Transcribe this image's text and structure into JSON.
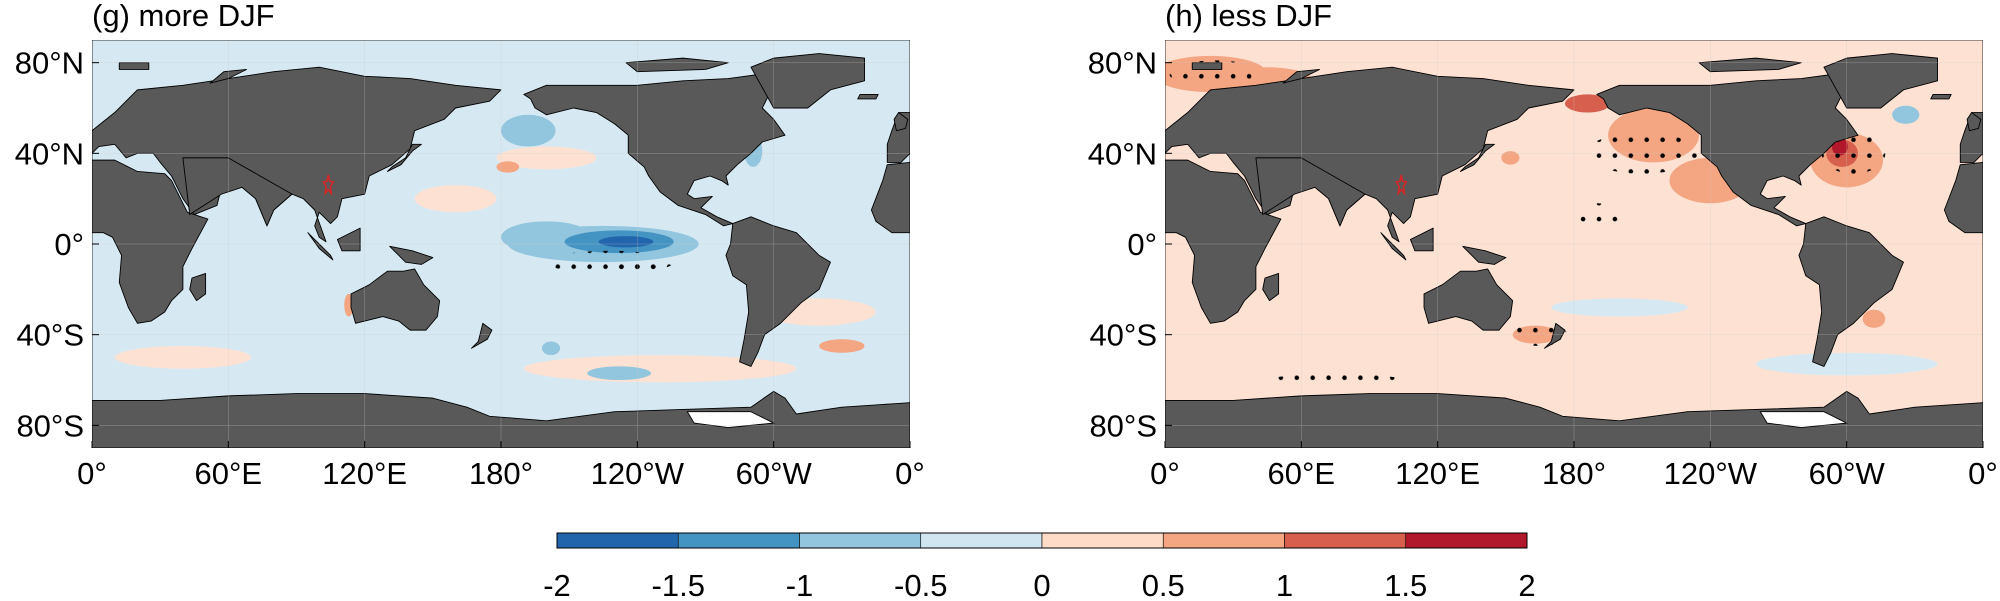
{
  "panels": [
    {
      "id": "g",
      "title": "(g) more DJF",
      "lat_ticks": [
        "80°N",
        "40°N",
        "0°",
        "40°S",
        "80°S"
      ],
      "lon_ticks": [
        "0°",
        "60°E",
        "120°E",
        "180°",
        "120°W",
        "60°W",
        "0°"
      ],
      "marker": {
        "name": "red-star",
        "lon": 104,
        "lat": 26
      },
      "anomalies": [
        {
          "name": "eq-pacific-cold-tongue",
          "lon": 225,
          "lat": 0,
          "rx": 42,
          "ry": 8,
          "value": -0.7
        },
        {
          "name": "eq-pacific-extension",
          "lon": 200,
          "lat": 3,
          "rx": 20,
          "ry": 7,
          "value": -0.7
        },
        {
          "name": "eq-pacific-core",
          "lon": 235,
          "lat": 1,
          "rx": 12,
          "ry": 2.5,
          "value": -1.6
        },
        {
          "name": "eq-pacific-mid",
          "lon": 232,
          "lat": 1,
          "rx": 24,
          "ry": 5,
          "value": -1.1
        },
        {
          "name": "north-pacific-cool",
          "lon": 192,
          "lat": 50,
          "rx": 12,
          "ry": 7,
          "value": -0.6
        },
        {
          "name": "south-pacific-cool",
          "lon": 232,
          "lat": -57,
          "rx": 14,
          "ry": 3,
          "value": -0.6
        },
        {
          "name": "south-pacific-cool-2",
          "lon": 202,
          "lat": -46,
          "rx": 4,
          "ry": 3,
          "value": -0.6
        },
        {
          "name": "nw-atlantic-cool",
          "lon": 291,
          "lat": 41,
          "rx": 4,
          "ry": 7,
          "value": -0.6
        },
        {
          "name": "north-pacific-warm",
          "lon": 183,
          "lat": 34,
          "rx": 5,
          "ry": 2.5,
          "value": 0.7
        },
        {
          "name": "w-australia-warm",
          "lon": 113,
          "lat": -27,
          "rx": 2,
          "ry": 5,
          "value": 0.7
        },
        {
          "name": "south-atlantic-warm",
          "lon": 330,
          "lat": -45,
          "rx": 10,
          "ry": 3,
          "value": 0.7
        }
      ]
    },
    {
      "id": "h",
      "title": "(h) less DJF",
      "lat_ticks": [
        "80°N",
        "40°N",
        "0°",
        "40°S",
        "80°S"
      ],
      "lon_ticks": [
        "0°",
        "60°E",
        "120°E",
        "180°",
        "120°W",
        "60°W",
        "0°"
      ],
      "marker": {
        "name": "red-star",
        "lon": 104,
        "lat": 26
      },
      "anomalies": [
        {
          "name": "ne-pacific-warm",
          "lon": 215,
          "lat": 48,
          "rx": 20,
          "ry": 12,
          "value": 0.7
        },
        {
          "name": "ne-pacific-warm-tail",
          "lon": 240,
          "lat": 28,
          "rx": 18,
          "ry": 10,
          "value": 0.7
        },
        {
          "name": "bering-warm",
          "lon": 186,
          "lat": 62,
          "rx": 10,
          "ry": 4,
          "value": 1.1
        },
        {
          "name": "nw-atlantic-warm",
          "lon": 300,
          "lat": 37,
          "rx": 16,
          "ry": 12,
          "value": 0.7
        },
        {
          "name": "nw-atlantic-core",
          "lon": 297,
          "lat": 43,
          "rx": 3.5,
          "ry": 4,
          "value": 1.6
        },
        {
          "name": "nw-atlantic-mid",
          "lon": 298,
          "lat": 40,
          "rx": 7,
          "ry": 6,
          "value": 1.1
        },
        {
          "name": "arctic-atlantic-warm",
          "lon": 20,
          "lat": 75,
          "rx": 25,
          "ry": 8,
          "value": 0.7
        },
        {
          "name": "barents-warm",
          "lon": 45,
          "lat": 72,
          "rx": 20,
          "ry": 6,
          "value": 0.7
        },
        {
          "name": "kuroshio-warm",
          "lon": 152,
          "lat": 38,
          "rx": 4,
          "ry": 3,
          "value": 0.7
        },
        {
          "name": "tasman-warm",
          "lon": 163,
          "lat": -40,
          "rx": 10,
          "ry": 4,
          "value": 0.7
        },
        {
          "name": "north-atlantic-cool",
          "lon": 326,
          "lat": 57,
          "rx": 6,
          "ry": 4,
          "value": -0.6
        },
        {
          "name": "south-atlantic-warm",
          "lon": 312,
          "lat": -33,
          "rx": 5,
          "ry": 4,
          "value": 0.7
        }
      ]
    }
  ],
  "colorbar": {
    "tick_labels": [
      "-2",
      "-1.5",
      "-1",
      "-0.5",
      "0",
      "0.5",
      "1",
      "1.5",
      "2"
    ],
    "bins": [
      -2,
      -1.5,
      -1,
      -0.5,
      0,
      0.5,
      1,
      1.5,
      2
    ],
    "colors": [
      "#053061",
      "#2166ac",
      "#4393c3",
      "#92c5de",
      "#d1e5f0",
      "#fddbc7",
      "#f4a582",
      "#d6604d",
      "#b2182b",
      "#67001f"
    ]
  },
  "colors": {
    "land": "#595959",
    "ocean_cool": "#d6e9f3",
    "ocean_warm": "#fde2d4",
    "stipple": "#000000",
    "star": "#d62728"
  }
}
